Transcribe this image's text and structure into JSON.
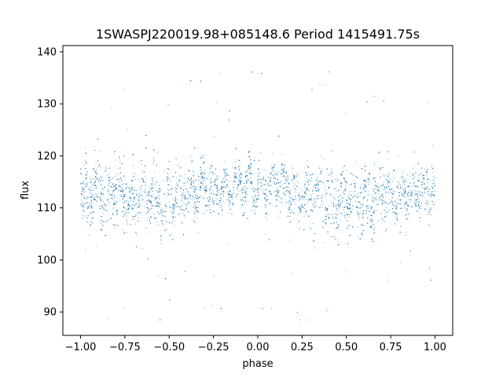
{
  "chart_data": {
    "type": "scatter",
    "title": "1SWASPJ220019.98+085148.6 Period 1415491.75s",
    "xlabel": "phase",
    "ylabel": "flux",
    "xlim": [
      -1.1,
      1.1
    ],
    "ylim": [
      85.5,
      141.2
    ],
    "xticks": [
      -1.0,
      -0.75,
      -0.5,
      -0.25,
      0.0,
      0.25,
      0.5,
      0.75,
      1.0
    ],
    "xtick_labels": [
      "−1.00",
      "−0.75",
      "−0.50",
      "−0.25",
      "0.00",
      "0.25",
      "0.50",
      "0.75",
      "1.00"
    ],
    "yticks": [
      90,
      100,
      110,
      120,
      130,
      140
    ],
    "ytick_labels": [
      "90",
      "100",
      "110",
      "120",
      "130",
      "140"
    ],
    "grid": false,
    "marker_color": "#1f77b4",
    "series": [
      {
        "x": [
          -1.0,
          -0.95,
          -0.9,
          -0.85,
          -0.8,
          -0.75,
          -0.7,
          -0.65,
          -0.6,
          -0.55,
          -0.5,
          -0.45,
          -0.4,
          -0.35,
          -0.3,
          -0.25,
          -0.2,
          -0.15,
          -0.1,
          -0.05,
          0.0,
          0.05,
          0.1,
          0.15,
          0.2,
          0.25,
          0.3,
          0.35,
          0.4,
          0.45,
          0.5,
          0.55,
          0.6,
          0.65,
          0.7,
          0.75,
          0.8,
          0.85,
          0.9,
          0.95,
          1.0
        ],
        "y": [
          113.5,
          112.0,
          114.0,
          111.5,
          113.0,
          112.0,
          111.0,
          112.5,
          113.0,
          111.0,
          111.5,
          112.0,
          112.5,
          113.0,
          114.0,
          113.0,
          113.5,
          114.0,
          114.5,
          115.0,
          113.5,
          114.0,
          115.0,
          114.0,
          113.0,
          112.5,
          112.0,
          113.0,
          111.5,
          112.0,
          112.0,
          111.0,
          112.5,
          111.0,
          113.0,
          112.0,
          112.5,
          113.0,
          113.5,
          113.0,
          113.5
        ],
        "spread": [
          6,
          7,
          7,
          8,
          8,
          8,
          8,
          7,
          7,
          8,
          7,
          7,
          7,
          6,
          6,
          6,
          5,
          5,
          5,
          5,
          5,
          5,
          5,
          6,
          6,
          7,
          7,
          7,
          8,
          8,
          8,
          8,
          7,
          8,
          7,
          7,
          6,
          6,
          6,
          6,
          6
        ]
      }
    ]
  }
}
